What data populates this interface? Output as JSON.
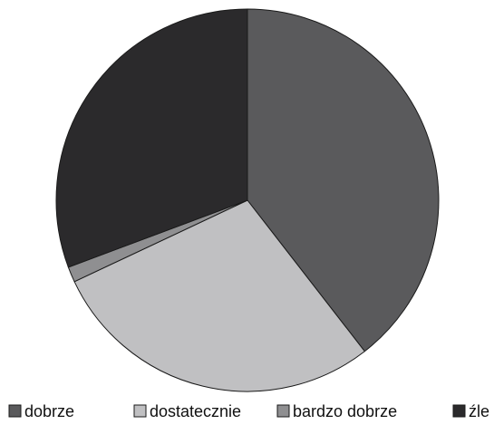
{
  "chart_data": {
    "type": "pie",
    "slices": [
      {
        "label": "dobrze",
        "value": 39.5,
        "color": "#5a5a5c"
      },
      {
        "label": "dostatecznie",
        "value": 28.5,
        "color": "#c0c0c2"
      },
      {
        "label": "bardzo dobrze",
        "value": 1.3,
        "color": "#8f8f91"
      },
      {
        "label": "źle",
        "value": 30.7,
        "color": "#2b2a2c"
      }
    ],
    "legend_position": "bottom",
    "start_angle_deg": 0,
    "direction": "clockwise"
  }
}
